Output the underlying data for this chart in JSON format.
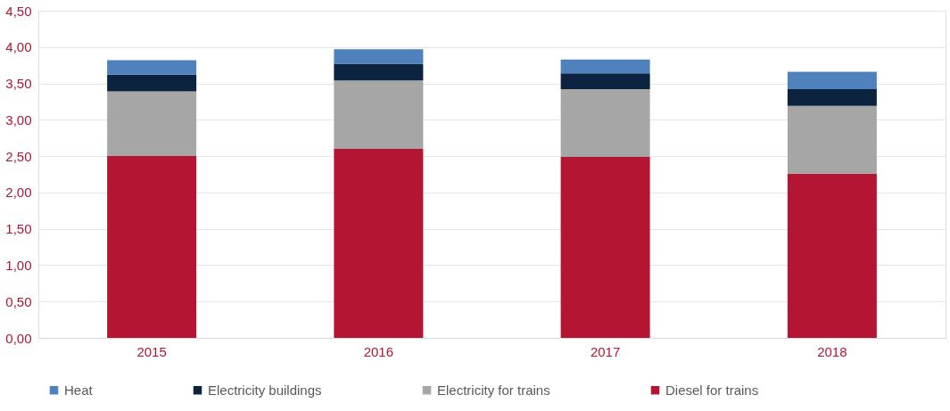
{
  "chart_data": {
    "type": "bar",
    "stacked": true,
    "categories": [
      "2015",
      "2016",
      "2017",
      "2018"
    ],
    "series": [
      {
        "name": "Diesel for trains",
        "color": "#b31532",
        "values": [
          2.5,
          2.6,
          2.49,
          2.26
        ]
      },
      {
        "name": "Electricity for trains",
        "color": "#a6a6a6",
        "values": [
          0.89,
          0.94,
          0.93,
          0.93
        ]
      },
      {
        "name": "Electricity buildings",
        "color": "#0c2340",
        "values": [
          0.23,
          0.23,
          0.22,
          0.23
        ]
      },
      {
        "name": "Heat",
        "color": "#4f81bd",
        "values": [
          0.2,
          0.2,
          0.19,
          0.24
        ]
      }
    ],
    "ylim": [
      0,
      4.5
    ],
    "yticks": [
      {
        "value": 0,
        "label": "0,00"
      },
      {
        "value": 0.5,
        "label": "0,50"
      },
      {
        "value": 1,
        "label": "1,00"
      },
      {
        "value": 1.5,
        "label": "1,50"
      },
      {
        "value": 2,
        "label": "2,00"
      },
      {
        "value": 2.5,
        "label": "2,50"
      },
      {
        "value": 3,
        "label": "3,00"
      },
      {
        "value": 3.5,
        "label": "3,50"
      },
      {
        "value": 4,
        "label": "4,00"
      },
      {
        "value": 4.5,
        "label": "4,50"
      }
    ],
    "grid": "y",
    "legend": "bottom"
  }
}
